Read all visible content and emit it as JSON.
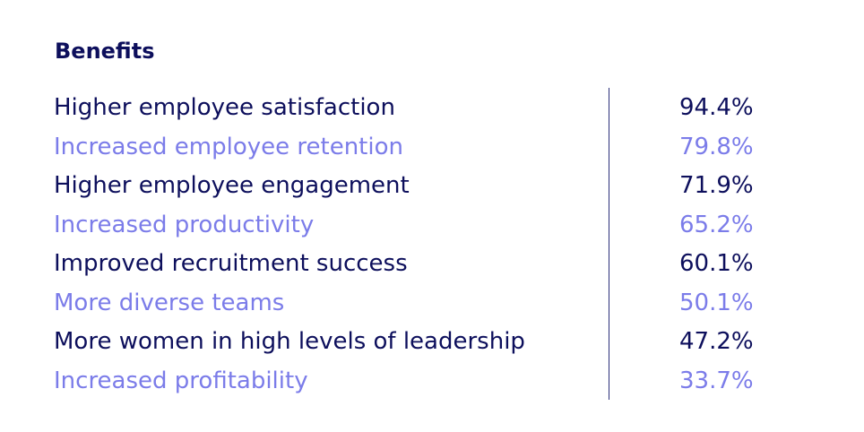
{
  "chart_data": {
    "type": "table",
    "title": "Benefits",
    "colors": {
      "heading": "#0d0f5c",
      "dark_row": "#0d0f5c",
      "light_row": "#7b7ce9",
      "divider": "#2b2e7a"
    },
    "rows": [
      {
        "label": "Higher employee satisfaction",
        "value": "94.4%",
        "number": 94.4
      },
      {
        "label": "Increased employee retention",
        "value": "79.8%",
        "number": 79.8
      },
      {
        "label": "Higher employee engagement",
        "value": "71.9%",
        "number": 71.9
      },
      {
        "label": "Increased productivity",
        "value": "65.2%",
        "number": 65.2
      },
      {
        "label": "Improved recruitment success",
        "value": "60.1%",
        "number": 60.1
      },
      {
        "label": "More diverse teams",
        "value": "50.1%",
        "number": 50.1
      },
      {
        "label": "More women in high levels of leadership",
        "value": "47.2%",
        "number": 47.2
      },
      {
        "label": "Increased profitability",
        "value": "33.7%",
        "number": 33.7
      }
    ]
  }
}
